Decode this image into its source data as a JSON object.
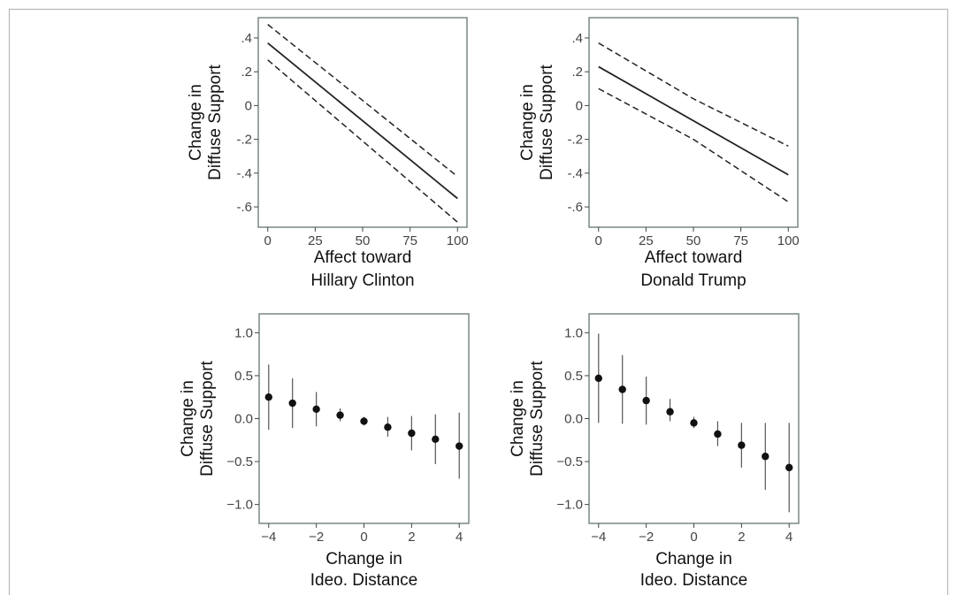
{
  "figure": {
    "border_color": "#b8b8b8"
  },
  "charts": [
    {
      "type": "line",
      "ylabel": [
        "Change in",
        "Diffuse Support"
      ],
      "xlabel": [
        "Affect toward",
        "Hillary Clinton"
      ],
      "xticks": [
        0,
        25,
        50,
        75,
        100
      ],
      "xtick_labels": [
        "0",
        "25",
        "50",
        "75",
        "100"
      ],
      "yticks": [
        0.4,
        0.2,
        0,
        -0.2,
        -0.4,
        -0.6
      ],
      "ytick_labels": [
        ".4",
        ".2",
        "0",
        "-.2",
        "-.4",
        "-.6"
      ],
      "xlim": [
        -5,
        105
      ],
      "ylim": [
        -0.72,
        0.52
      ],
      "grid": false,
      "series": [
        {
          "style": "solid",
          "x": [
            0,
            100
          ],
          "y": [
            0.37,
            -0.55
          ]
        },
        {
          "style": "dashed",
          "x": [
            0,
            100
          ],
          "y": [
            0.48,
            -0.42
          ]
        },
        {
          "style": "dashed",
          "x": [
            0,
            100
          ],
          "y": [
            0.27,
            -0.69
          ]
        }
      ]
    },
    {
      "type": "line",
      "ylabel": [
        "Change in",
        "Diffuse Support"
      ],
      "xlabel": [
        "Affect toward",
        "Donald Trump"
      ],
      "xticks": [
        0,
        25,
        50,
        75,
        100
      ],
      "xtick_labels": [
        "0",
        "25",
        "50",
        "75",
        "100"
      ],
      "yticks": [
        0.4,
        0.2,
        0,
        -0.2,
        -0.4,
        -0.6
      ],
      "ytick_labels": [
        ".4",
        ".2",
        "0",
        "-.2",
        "-.4",
        "-.6"
      ],
      "xlim": [
        -5,
        105
      ],
      "ylim": [
        -0.72,
        0.52
      ],
      "grid": false,
      "series": [
        {
          "style": "solid",
          "x": [
            0,
            100
          ],
          "y": [
            0.23,
            -0.41
          ]
        },
        {
          "style": "dashed",
          "x": [
            0,
            50,
            100
          ],
          "y": [
            0.37,
            0.04,
            -0.24
          ]
        },
        {
          "style": "dashed",
          "x": [
            0,
            50,
            100
          ],
          "y": [
            0.1,
            -0.2,
            -0.57
          ]
        }
      ]
    },
    {
      "type": "scatter",
      "ylabel": [
        "Change in",
        "Diffuse Support"
      ],
      "xlabel": [
        "Change in",
        "Ideo. Distance"
      ],
      "xticks": [
        -4,
        -2,
        0,
        2,
        4
      ],
      "xtick_labels": [
        "−4",
        "−2",
        "0",
        "2",
        "4"
      ],
      "yticks": [
        1.0,
        0.5,
        0.0,
        -0.5,
        -1.0
      ],
      "ytick_labels": [
        "1.0",
        "0.5",
        "0.0",
        "−0.5",
        "−1.0"
      ],
      "xlim": [
        -4.4,
        4.4
      ],
      "ylim": [
        -1.22,
        1.22
      ],
      "grid": false,
      "x": [
        -4,
        -3,
        -2,
        -1,
        0,
        1,
        2,
        3,
        4
      ],
      "y": [
        0.25,
        0.18,
        0.11,
        0.04,
        -0.03,
        -0.1,
        -0.17,
        -0.24,
        -0.32
      ],
      "ci_low": [
        -0.13,
        -0.11,
        -0.09,
        -0.03,
        -0.08,
        -0.21,
        -0.37,
        -0.53,
        -0.7
      ],
      "ci_high": [
        0.63,
        0.47,
        0.31,
        0.12,
        0.02,
        0.02,
        0.03,
        0.05,
        0.07
      ]
    },
    {
      "type": "scatter",
      "ylabel": [
        "Change in",
        "Diffuse Support"
      ],
      "xlabel": [
        "Change in",
        "Ideo. Distance"
      ],
      "xticks": [
        -4,
        -2,
        0,
        2,
        4
      ],
      "xtick_labels": [
        "−4",
        "−2",
        "0",
        "2",
        "4"
      ],
      "yticks": [
        1.0,
        0.5,
        0.0,
        -0.5,
        -1.0
      ],
      "ytick_labels": [
        "1.0",
        "0.5",
        "0.0",
        "−0.5",
        "−1.0"
      ],
      "xlim": [
        -4.4,
        4.4
      ],
      "ylim": [
        -1.22,
        1.22
      ],
      "grid": false,
      "x": [
        -4,
        -3,
        -2,
        -1,
        0,
        1,
        2,
        3,
        4
      ],
      "y": [
        0.47,
        0.34,
        0.21,
        0.08,
        -0.05,
        -0.18,
        -0.31,
        -0.44,
        -0.57
      ],
      "ci_low": [
        -0.05,
        -0.06,
        -0.07,
        -0.03,
        -0.11,
        -0.32,
        -0.57,
        -0.83,
        -1.09
      ],
      "ci_high": [
        0.99,
        0.74,
        0.49,
        0.23,
        0.02,
        -0.03,
        -0.05,
        -0.05,
        -0.05
      ]
    }
  ],
  "chart_data": [
    {
      "type": "line",
      "xlabel": "Affect toward Hillary Clinton",
      "ylabel": "Change in Diffuse Support",
      "xlim": [
        0,
        100
      ],
      "ylim": [
        -0.7,
        0.5
      ],
      "series": [
        {
          "x": [
            0,
            100
          ],
          "y": [
            0.37,
            -0.55
          ]
        },
        {
          "x": [
            0,
            100
          ],
          "y": [
            0.48,
            -0.42
          ]
        },
        {
          "x": [
            0,
            100
          ],
          "y": [
            0.27,
            -0.69
          ]
        }
      ]
    },
    {
      "type": "line",
      "xlabel": "Affect toward Donald Trump",
      "ylabel": "Change in Diffuse Support",
      "xlim": [
        0,
        100
      ],
      "ylim": [
        -0.7,
        0.5
      ],
      "series": [
        {
          "x": [
            0,
            100
          ],
          "y": [
            0.23,
            -0.41
          ]
        },
        {
          "x": [
            0,
            50,
            100
          ],
          "y": [
            0.37,
            0.04,
            -0.24
          ]
        },
        {
          "x": [
            0,
            50,
            100
          ],
          "y": [
            0.1,
            -0.2,
            -0.57
          ]
        }
      ]
    },
    {
      "type": "scatter",
      "xlabel": "Change in Ideo. Distance",
      "ylabel": "Change in Diffuse Support",
      "xlim": [
        -4,
        4
      ],
      "ylim": [
        -1.0,
        1.0
      ],
      "x": [
        -4,
        -3,
        -2,
        -1,
        0,
        1,
        2,
        3,
        4
      ],
      "y": [
        0.25,
        0.18,
        0.11,
        0.04,
        -0.03,
        -0.1,
        -0.17,
        -0.24,
        -0.32
      ],
      "ci_low": [
        -0.13,
        -0.11,
        -0.09,
        -0.03,
        -0.08,
        -0.21,
        -0.37,
        -0.53,
        -0.7
      ],
      "ci_high": [
        0.63,
        0.47,
        0.31,
        0.12,
        0.02,
        0.02,
        0.03,
        0.05,
        0.07
      ]
    },
    {
      "type": "scatter",
      "xlabel": "Change in Ideo. Distance",
      "ylabel": "Change in Diffuse Support",
      "xlim": [
        -4,
        4
      ],
      "ylim": [
        -1.0,
        1.0
      ],
      "x": [
        -4,
        -3,
        -2,
        -1,
        0,
        1,
        2,
        3,
        4
      ],
      "y": [
        0.47,
        0.34,
        0.21,
        0.08,
        -0.05,
        -0.18,
        -0.31,
        -0.44,
        -0.57
      ],
      "ci_low": [
        -0.05,
        -0.06,
        -0.07,
        -0.03,
        -0.11,
        -0.32,
        -0.57,
        -0.83,
        -1.09
      ],
      "ci_high": [
        0.99,
        0.74,
        0.49,
        0.23,
        0.02,
        -0.03,
        -0.05,
        -0.05,
        -0.05
      ]
    }
  ]
}
